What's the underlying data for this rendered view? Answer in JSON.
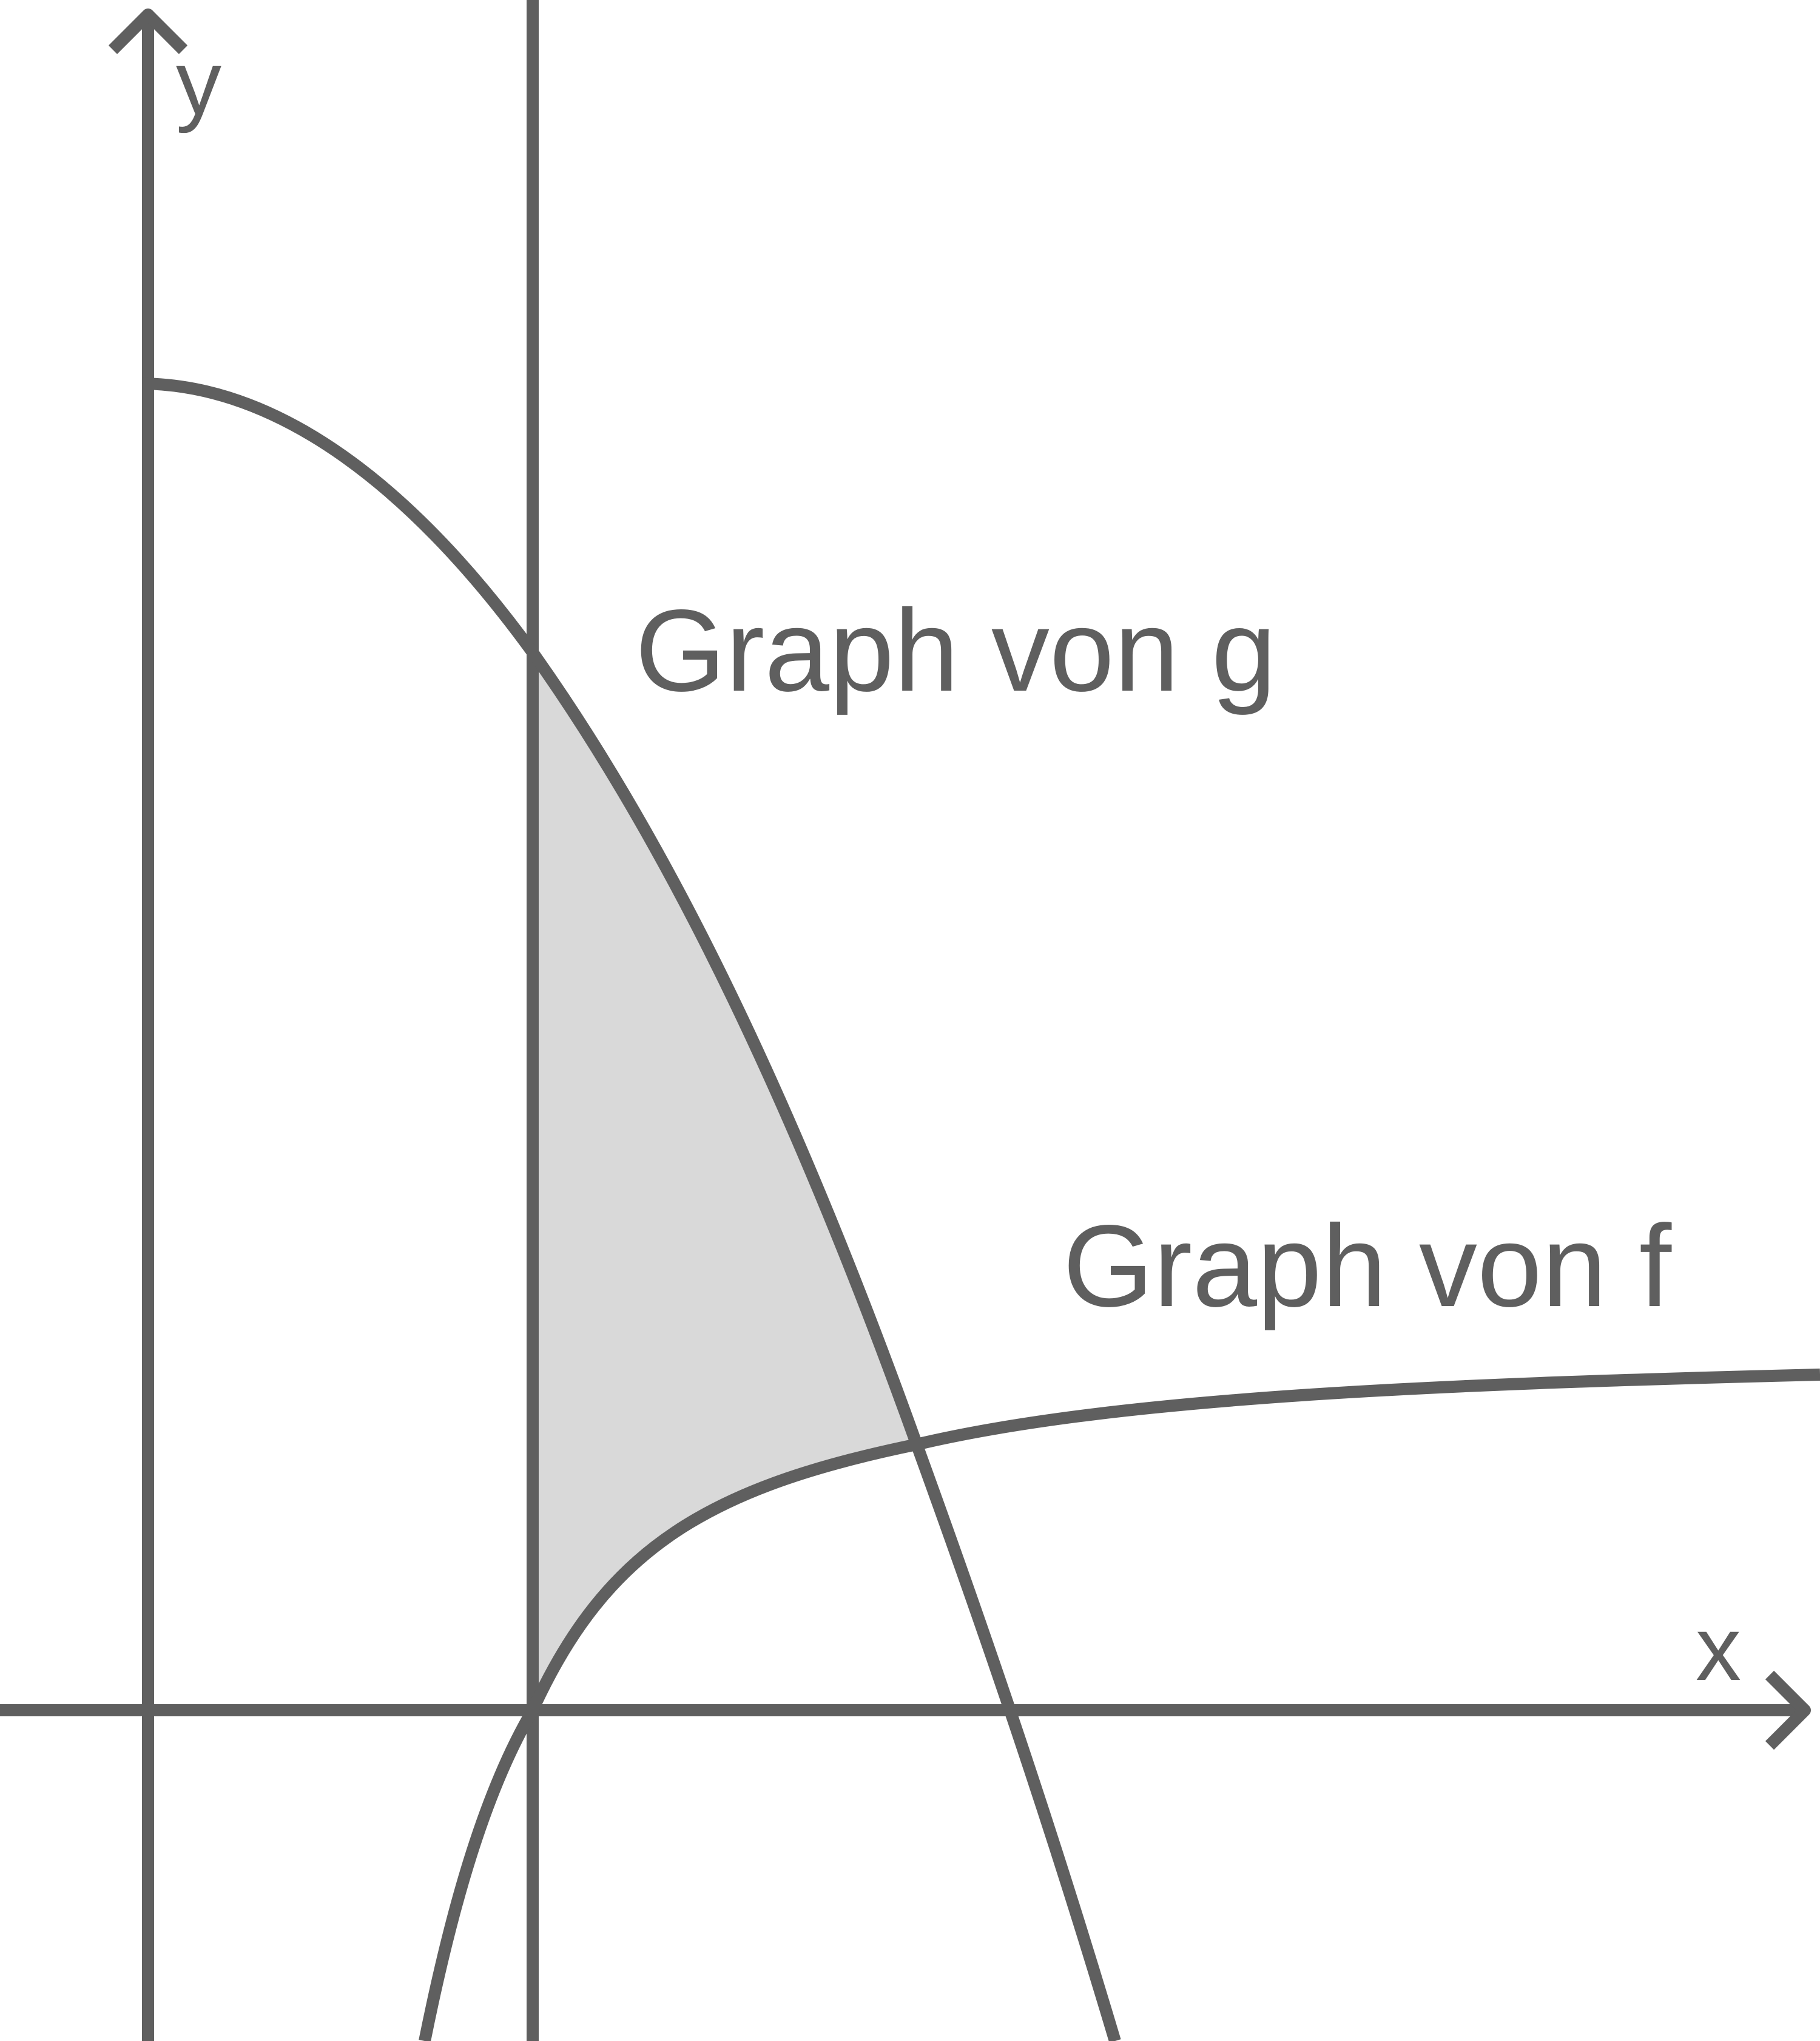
{
  "colors": {
    "line": "#5f5f5f",
    "shade": "#d9d9d9",
    "background": "#ffffff"
  },
  "axes": {
    "x_label": "x",
    "y_label": "y"
  },
  "labels": {
    "graph_g": "Graph von g",
    "graph_f": "Graph von f"
  }
}
